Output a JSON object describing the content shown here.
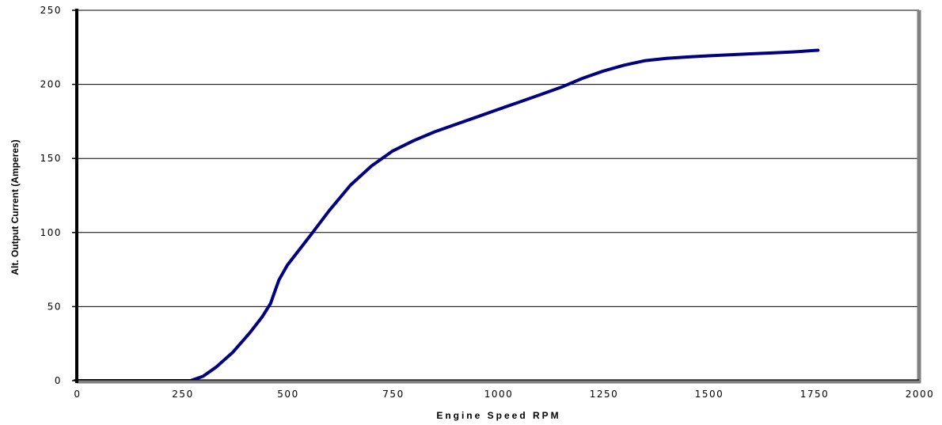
{
  "chart_data": {
    "type": "line",
    "title": "",
    "xlabel": "Engine Speed RPM",
    "ylabel": "Alt. Output Current (Amperes)",
    "xlim": [
      0,
      2000
    ],
    "ylim": [
      0,
      250
    ],
    "xticks": [
      "0",
      "250",
      "500",
      "750",
      "1000",
      "1250",
      "1500",
      "1750",
      "2000"
    ],
    "yticks": [
      "0",
      "50",
      "100",
      "150",
      "200",
      "250"
    ],
    "grid": "horizontal",
    "series": [
      {
        "color": "#000080",
        "x": [
          0,
          75,
          250,
          270,
          300,
          330,
          370,
          410,
          440,
          460,
          470,
          480,
          500,
          530,
          560,
          600,
          650,
          700,
          750,
          800,
          850,
          900,
          950,
          1000,
          1050,
          1100,
          1150,
          1200,
          1250,
          1300,
          1350,
          1400,
          1450,
          1500,
          1550,
          1600,
          1650,
          1700,
          1760
        ],
        "y": [
          0,
          0,
          0,
          0,
          3,
          9,
          19,
          32,
          43,
          52,
          60,
          68,
          78,
          89,
          100,
          115,
          132,
          145,
          155,
          162,
          168,
          173,
          178,
          183,
          188,
          193,
          198,
          204,
          209,
          213,
          216,
          217.5,
          218.5,
          219.3,
          220,
          220.6,
          221.2,
          221.9,
          223
        ]
      }
    ]
  }
}
